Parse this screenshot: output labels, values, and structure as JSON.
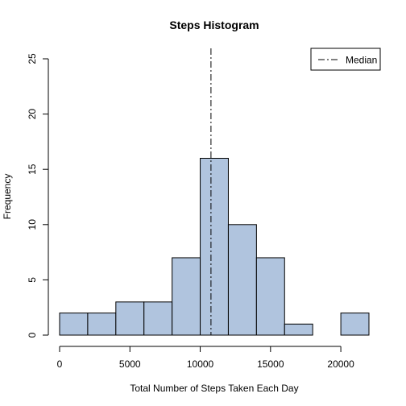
{
  "chart_data": {
    "type": "bar",
    "title": "Steps Histogram",
    "xlabel": "Total Number of Steps Taken Each Day",
    "ylabel": "Frequency",
    "bins": [
      {
        "start": 0,
        "end": 2000,
        "count": 2
      },
      {
        "start": 2000,
        "end": 4000,
        "count": 2
      },
      {
        "start": 4000,
        "end": 6000,
        "count": 3
      },
      {
        "start": 6000,
        "end": 8000,
        "count": 3
      },
      {
        "start": 8000,
        "end": 10000,
        "count": 7
      },
      {
        "start": 10000,
        "end": 12000,
        "count": 16
      },
      {
        "start": 12000,
        "end": 14000,
        "count": 10
      },
      {
        "start": 14000,
        "end": 16000,
        "count": 7
      },
      {
        "start": 16000,
        "end": 18000,
        "count": 1
      },
      {
        "start": 18000,
        "end": 20000,
        "count": 0
      },
      {
        "start": 20000,
        "end": 22000,
        "count": 2
      }
    ],
    "xlim": [
      0,
      22000
    ],
    "ylim": [
      0,
      25
    ],
    "xticks": [
      0,
      5000,
      10000,
      15000,
      20000
    ],
    "yticks": [
      0,
      5,
      10,
      15,
      20,
      25
    ],
    "median": 10765,
    "bar_color": "#b0c4de",
    "bar_border_color": "#000000",
    "legend": {
      "position": "top-right",
      "entries": [
        "Median"
      ]
    }
  }
}
